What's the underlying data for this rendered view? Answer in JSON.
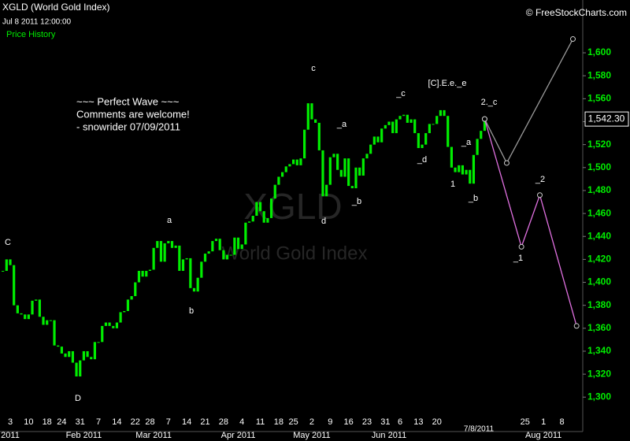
{
  "chart_data": {
    "type": "candlestick",
    "title": "XGLD (World Gold Index)",
    "timestamp": "Jul 8 2011 12:00:00",
    "panel_label": "Price History",
    "source": "© FreeStockCharts.com",
    "watermark": [
      "XGLD",
      "World Gold Index"
    ],
    "comment": [
      "~~~ Perfect Wave ~~~",
      "Comments are welcome!",
      "- snowrider  07/09/2011"
    ],
    "cursor_date": "7/8/2011",
    "color": "#00ee00",
    "last_price": {
      "value": 1542.3,
      "label": "1,542.30"
    },
    "ylim": [
      1270,
      1646
    ],
    "yticks": [
      {
        "value": 1300,
        "label": "1,300"
      },
      {
        "value": 1320,
        "label": "1,320"
      },
      {
        "value": 1340,
        "label": "1,340"
      },
      {
        "value": 1360,
        "label": "1,360"
      },
      {
        "value": 1380,
        "label": "1,380"
      },
      {
        "value": 1400,
        "label": "1,400"
      },
      {
        "value": 1420,
        "label": "1,420"
      },
      {
        "value": 1440,
        "label": "1,440"
      },
      {
        "value": 1460,
        "label": "1,460"
      },
      {
        "value": 1480,
        "label": "1,480"
      },
      {
        "value": 1500,
        "label": "1,500"
      },
      {
        "value": 1520,
        "label": "1,520"
      },
      {
        "value": 1540,
        "label": "1,540"
      },
      {
        "value": 1560,
        "label": "1,560"
      },
      {
        "value": 1580,
        "label": "1,580"
      },
      {
        "value": 1600,
        "label": "1,600"
      }
    ],
    "categories": [
      null,
      null,
      "3",
      null,
      null,
      null,
      null,
      "10",
      null,
      null,
      null,
      null,
      "18",
      null,
      null,
      null,
      "24",
      null,
      null,
      null,
      null,
      "31",
      null,
      null,
      null,
      null,
      "7",
      null,
      null,
      null,
      null,
      "14",
      null,
      null,
      null,
      null,
      "22",
      null,
      null,
      null,
      "28",
      null,
      null,
      null,
      null,
      "7",
      null,
      null,
      null,
      null,
      "14",
      null,
      null,
      null,
      null,
      "21",
      null,
      null,
      null,
      null,
      "28",
      null,
      null,
      null,
      null,
      "4",
      null,
      null,
      null,
      null,
      "11",
      null,
      null,
      null,
      null,
      "18",
      null,
      null,
      null,
      "25",
      null,
      null,
      null,
      null,
      "2",
      null,
      null,
      null,
      null,
      "9",
      null,
      null,
      null,
      null,
      "16",
      null,
      null,
      null,
      null,
      "23",
      null,
      null,
      null,
      null,
      "31",
      null,
      null,
      null,
      "6",
      null,
      null,
      null,
      null,
      "13",
      null,
      null,
      null,
      null,
      "20",
      null,
      null,
      null,
      null,
      null,
      null,
      null,
      null,
      null,
      null,
      null,
      null,
      null,
      null,
      null,
      null,
      null,
      null,
      null,
      null,
      null,
      null,
      null,
      "25",
      null,
      null,
      null,
      null,
      "1",
      null,
      null,
      null,
      null,
      "8",
      null,
      null,
      null,
      null,
      null
    ],
    "month_categories": [
      null,
      null,
      "2011",
      null,
      null,
      null,
      null,
      null,
      null,
      null,
      null,
      null,
      null,
      null,
      null,
      null,
      null,
      null,
      null,
      null,
      null,
      null,
      "Feb 2011",
      null,
      null,
      null,
      null,
      null,
      null,
      null,
      null,
      null,
      null,
      null,
      null,
      null,
      null,
      null,
      null,
      null,
      null,
      "Mar 2011",
      null,
      null,
      null,
      null,
      null,
      null,
      null,
      null,
      null,
      null,
      null,
      null,
      null,
      null,
      null,
      null,
      null,
      null,
      null,
      null,
      null,
      null,
      "Apr 2011",
      null,
      null,
      null,
      null,
      null,
      null,
      null,
      null,
      null,
      null,
      null,
      null,
      null,
      null,
      null,
      null,
      null,
      null,
      null,
      "May 2011",
      null,
      null,
      null,
      null,
      null,
      null,
      null,
      null,
      null,
      null,
      null,
      null,
      null,
      null,
      null,
      null,
      null,
      null,
      null,
      null,
      "Jun 2011",
      null,
      null,
      null,
      null,
      null,
      null,
      null,
      null,
      null,
      null,
      null,
      null,
      null,
      null,
      null,
      null,
      null,
      null,
      null,
      null,
      null,
      null,
      null,
      null,
      null,
      null,
      null,
      null,
      null,
      null,
      null,
      null,
      null,
      null,
      null,
      null,
      null,
      null,
      null,
      null,
      null,
      "Aug 2011",
      null,
      null,
      null,
      null,
      null,
      null,
      null,
      null,
      null,
      null
    ],
    "values": [
      1410,
      1420,
      1415,
      1380,
      1373,
      1372,
      1368,
      1372,
      1384,
      1385,
      1370,
      1363,
      1367,
      1367,
      1345,
      1344,
      1338,
      1335,
      1340,
      1330,
      1318,
      1332,
      1340,
      1335,
      1333,
      1348,
      1348,
      1362,
      1365,
      1362,
      1360,
      1365,
      1374,
      1375,
      1385,
      1388,
      1400,
      1410,
      1405,
      1410,
      1411,
      1430,
      1436,
      1418,
      1434,
      1436,
      1430,
      1432,
      1410,
      1420,
      1421,
      1395,
      1392,
      1404,
      1418,
      1425,
      1427,
      1436,
      1438,
      1428,
      1420,
      1424,
      1424,
      1439,
      1429,
      1433,
      1452,
      1453,
      1458,
      1470,
      1462,
      1452,
      1456,
      1473,
      1485,
      1492,
      1496,
      1501,
      1503,
      1507,
      1502,
      1508,
      1533,
      1556,
      1542,
      1539,
      1515,
      1475,
      1485,
      1509,
      1512,
      1498,
      1492,
      1508,
      1484,
      1482,
      1500,
      1493,
      1508,
      1512,
      1520,
      1527,
      1522,
      1534,
      1537,
      1540,
      1530,
      1542,
      1545,
      1546,
      1539,
      1542,
      1530,
      1517,
      1520,
      1530,
      1538,
      1538,
      1545,
      1550,
      1545,
      1518,
      1500,
      1496,
      1502,
      1494,
      1498,
      1486,
      1511,
      1525,
      1532,
      1542.3,
      null,
      null,
      null,
      null,
      null,
      null,
      null,
      null,
      null,
      null,
      null,
      null,
      null,
      null,
      null,
      null,
      null,
      null,
      null,
      null,
      null,
      null,
      null,
      null,
      null,
      null
    ],
    "projections": [
      {
        "color": "#9a9a9a",
        "values": [
          null,
          null,
          null,
          null,
          null,
          null,
          null,
          null,
          null,
          null,
          null,
          null,
          null,
          null,
          null,
          null,
          null,
          null,
          null,
          null,
          null,
          null,
          null,
          null,
          null,
          null,
          null,
          null,
          null,
          null,
          null,
          null,
          null,
          null,
          null,
          null,
          null,
          null,
          null,
          null,
          null,
          null,
          null,
          null,
          null,
          null,
          null,
          null,
          null,
          null,
          null,
          null,
          null,
          null,
          null,
          null,
          null,
          null,
          null,
          null,
          null,
          null,
          null,
          null,
          null,
          null,
          null,
          null,
          null,
          null,
          null,
          null,
          null,
          null,
          null,
          null,
          null,
          null,
          null,
          null,
          null,
          null,
          null,
          null,
          null,
          null,
          null,
          null,
          null,
          null,
          null,
          null,
          null,
          null,
          null,
          null,
          null,
          null,
          null,
          null,
          null,
          null,
          null,
          null,
          null,
          null,
          null,
          null,
          null,
          null,
          null,
          null,
          null,
          null,
          null,
          null,
          null,
          null,
          null,
          null,
          null,
          null,
          null,
          null,
          null,
          null,
          null,
          null,
          null,
          null,
          null,
          1542.3,
          null,
          null,
          null,
          null,
          null,
          1504,
          null,
          null,
          null,
          null,
          null,
          null,
          null,
          null,
          null,
          null,
          null,
          null,
          null,
          null,
          null,
          null,
          null,
          1612,
          null,
          null
        ]
      },
      {
        "color": "#e070e0",
        "values": [
          null,
          null,
          null,
          null,
          null,
          null,
          null,
          null,
          null,
          null,
          null,
          null,
          null,
          null,
          null,
          null,
          null,
          null,
          null,
          null,
          null,
          null,
          null,
          null,
          null,
          null,
          null,
          null,
          null,
          null,
          null,
          null,
          null,
          null,
          null,
          null,
          null,
          null,
          null,
          null,
          null,
          null,
          null,
          null,
          null,
          null,
          null,
          null,
          null,
          null,
          null,
          null,
          null,
          null,
          null,
          null,
          null,
          null,
          null,
          null,
          null,
          null,
          null,
          null,
          null,
          null,
          null,
          null,
          null,
          null,
          null,
          null,
          null,
          null,
          null,
          null,
          null,
          null,
          null,
          null,
          null,
          null,
          null,
          null,
          null,
          null,
          null,
          null,
          null,
          null,
          null,
          null,
          null,
          null,
          null,
          null,
          null,
          null,
          null,
          null,
          null,
          null,
          null,
          null,
          null,
          null,
          null,
          null,
          null,
          null,
          null,
          null,
          null,
          null,
          null,
          null,
          null,
          null,
          null,
          null,
          null,
          null,
          null,
          null,
          null,
          null,
          null,
          null,
          null,
          null,
          null,
          1542.3,
          null,
          null,
          null,
          null,
          null,
          null,
          null,
          null,
          null,
          1431,
          null,
          null,
          null,
          null,
          1476,
          null,
          null,
          null,
          null,
          null,
          null,
          null,
          null,
          null,
          1362,
          null
        ]
      }
    ],
    "annotations": [
      "C",
      "D",
      "a",
      "b",
      "c",
      "d",
      "_a",
      "_b",
      "_c",
      "_d",
      "[C].E.e._e",
      "1",
      "_a",
      "_b",
      "2._c",
      "_1",
      "_2"
    ]
  }
}
